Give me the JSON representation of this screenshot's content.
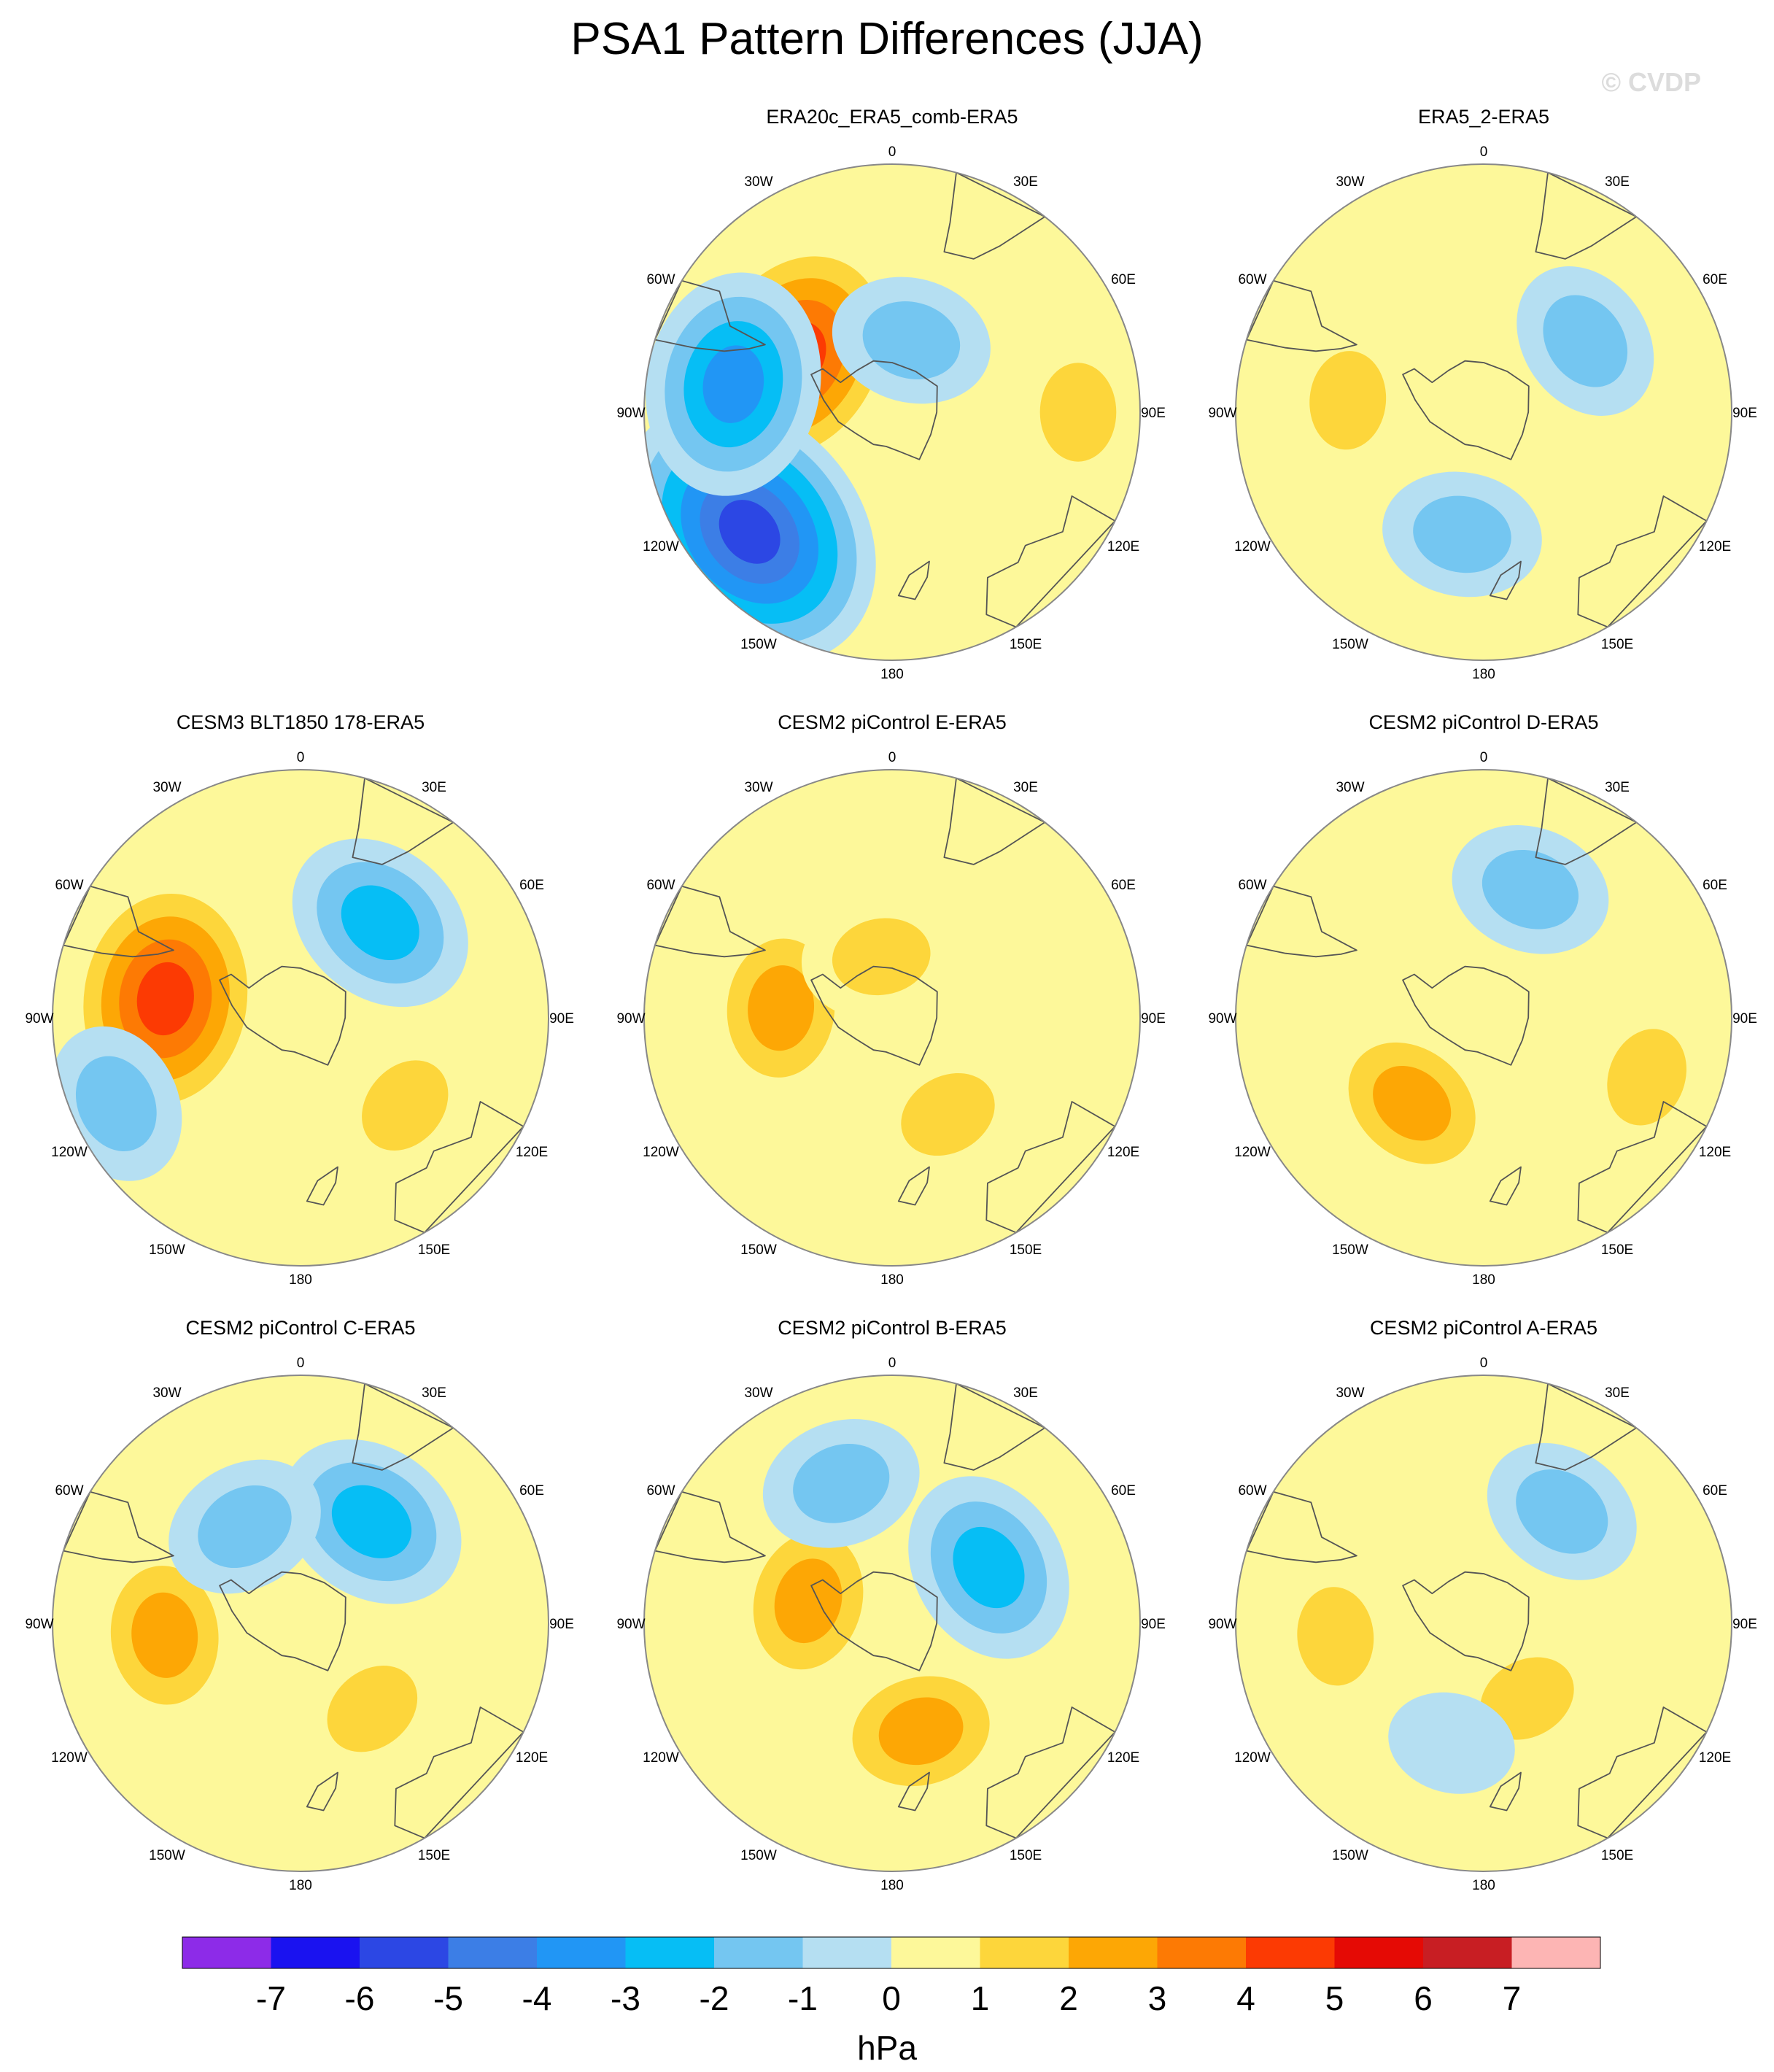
{
  "title": "PSA1 Pattern Differences (JJA)",
  "copyright": "© CVDP",
  "lon_labels": [
    "0",
    "30E",
    "60E",
    "90E",
    "120E",
    "150E",
    "180",
    "150W",
    "120W",
    "90W",
    "60W",
    "30W"
  ],
  "colors": {
    "land_outline": "#555555",
    "map_border": "#888888"
  },
  "colorbar": {
    "units": "hPa",
    "ticks": [
      "-7",
      "-6",
      "-5",
      "-4",
      "-3",
      "-2",
      "-1",
      "0",
      "1",
      "2",
      "3",
      "4",
      "5",
      "6",
      "7"
    ],
    "colors": [
      "#8d2be8",
      "#1a12f0",
      "#2c47e4",
      "#3c7ee6",
      "#2196f5",
      "#06bef5",
      "#74c6f1",
      "#b5dff2",
      "#fdf89a",
      "#fdd63b",
      "#fda705",
      "#fd7a04",
      "#fc3a03",
      "#e50a05",
      "#c81e23",
      "#fdb5b4"
    ]
  },
  "chart_data": [
    {
      "type": "heatmap",
      "title": "ERA20c_ERA5_comb-ERA5",
      "projection": "south polar stereographic",
      "units": "hPa",
      "features": [
        {
          "lon": -60,
          "r": 0.45,
          "value": 4.5
        },
        {
          "lon": -130,
          "r": 0.75,
          "value": -5.5
        },
        {
          "lon": -80,
          "r": 0.65,
          "value": -3.5
        },
        {
          "lon": 15,
          "r": 0.3,
          "value": -1.5
        },
        {
          "lon": 90,
          "r": 0.75,
          "value": 1.5
        }
      ]
    },
    {
      "type": "heatmap",
      "title": "ERA5_2-ERA5",
      "projection": "south polar stereographic",
      "units": "hPa",
      "features": [
        {
          "lon": -85,
          "r": 0.55,
          "value": 1.5
        },
        {
          "lon": -170,
          "r": 0.5,
          "value": -1.5
        },
        {
          "lon": 55,
          "r": 0.5,
          "value": -1.5
        }
      ]
    },
    {
      "type": "heatmap",
      "title": "CESM3 BLT1850 178-ERA5",
      "projection": "south polar stereographic",
      "units": "hPa",
      "features": [
        {
          "lon": -82,
          "r": 0.55,
          "value": 4.5
        },
        {
          "lon": 40,
          "r": 0.5,
          "value": -2.5
        },
        {
          "lon": 130,
          "r": 0.55,
          "value": 1.5
        },
        {
          "lon": -115,
          "r": 0.82,
          "value": -1.5
        }
      ]
    },
    {
      "type": "heatmap",
      "title": "CESM2 piControl E-ERA5",
      "projection": "south polar stereographic",
      "units": "hPa",
      "features": [
        {
          "lon": -85,
          "r": 0.45,
          "value": 2.5
        },
        {
          "lon": 150,
          "r": 0.45,
          "value": 1.5
        },
        {
          "lon": -10,
          "r": 0.25,
          "value": 1.5
        }
      ]
    },
    {
      "type": "heatmap",
      "title": "CESM2 piControl D-ERA5",
      "projection": "south polar stereographic",
      "units": "hPa",
      "features": [
        {
          "lon": 20,
          "r": 0.55,
          "value": -1.5
        },
        {
          "lon": -140,
          "r": 0.45,
          "value": 2.5
        },
        {
          "lon": 110,
          "r": 0.7,
          "value": 1.5
        }
      ]
    },
    {
      "type": "heatmap",
      "title": "CESM2 piControl C-ERA5",
      "projection": "south polar stereographic",
      "units": "hPa",
      "features": [
        {
          "lon": -95,
          "r": 0.55,
          "value": 2.5
        },
        {
          "lon": 35,
          "r": 0.5,
          "value": -2.5
        },
        {
          "lon": 140,
          "r": 0.45,
          "value": 1.5
        },
        {
          "lon": -30,
          "r": 0.45,
          "value": -1.5
        }
      ]
    },
    {
      "type": "heatmap",
      "title": "CESM2 piControl B-ERA5",
      "projection": "south polar stereographic",
      "units": "hPa",
      "features": [
        {
          "lon": -75,
          "r": 0.35,
          "value": 2.5
        },
        {
          "lon": 60,
          "r": 0.45,
          "value": -2.5
        },
        {
          "lon": 165,
          "r": 0.45,
          "value": 2.5
        },
        {
          "lon": -20,
          "r": 0.6,
          "value": -1.5
        }
      ]
    },
    {
      "type": "heatmap",
      "title": "CESM2 piControl A-ERA5",
      "projection": "south polar stereographic",
      "units": "hPa",
      "features": [
        {
          "lon": 35,
          "r": 0.55,
          "value": -1.5
        },
        {
          "lon": -95,
          "r": 0.6,
          "value": 1.5
        },
        {
          "lon": 150,
          "r": 0.35,
          "value": 1.5
        },
        {
          "lon": -165,
          "r": 0.5,
          "value": -0.5
        }
      ]
    }
  ]
}
